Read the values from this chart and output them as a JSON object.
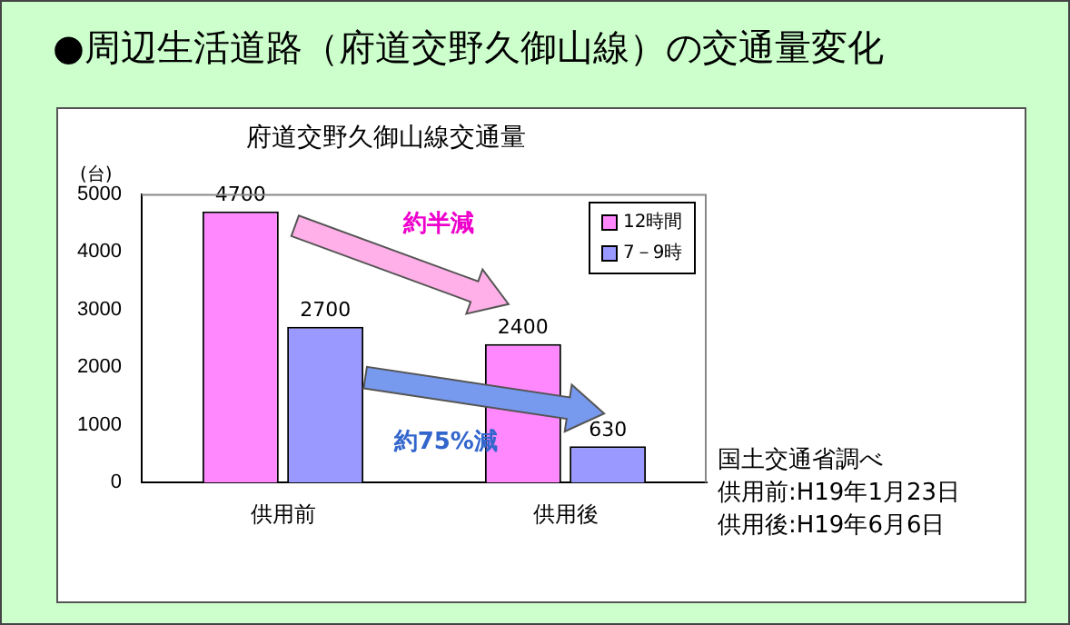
{
  "chart_data": {
    "type": "bar",
    "title": "●周辺生活道路（府道交野久御山線）の交通量変化",
    "subtitle": "府道交野久御山線交通量",
    "ylabel": "(台)",
    "categories": [
      "供用前",
      "供用後"
    ],
    "series": [
      {
        "name": "12時間",
        "color": "#ff88ff",
        "values": [
          4700,
          2400
        ]
      },
      {
        "name": "7－9時",
        "color": "#9999ff",
        "values": [
          2700,
          630
        ]
      }
    ],
    "ylim": [
      0,
      5000
    ],
    "yticks": [
      0,
      1000,
      2000,
      3000,
      4000,
      5000
    ],
    "grid": false,
    "legend": "top right",
    "data_labels": true,
    "annotations": [
      "約半減",
      "約75%減",
      "国土交通省調べ",
      "供用前:H19年1月23日",
      "供用後:H19年6月6日"
    ]
  }
}
